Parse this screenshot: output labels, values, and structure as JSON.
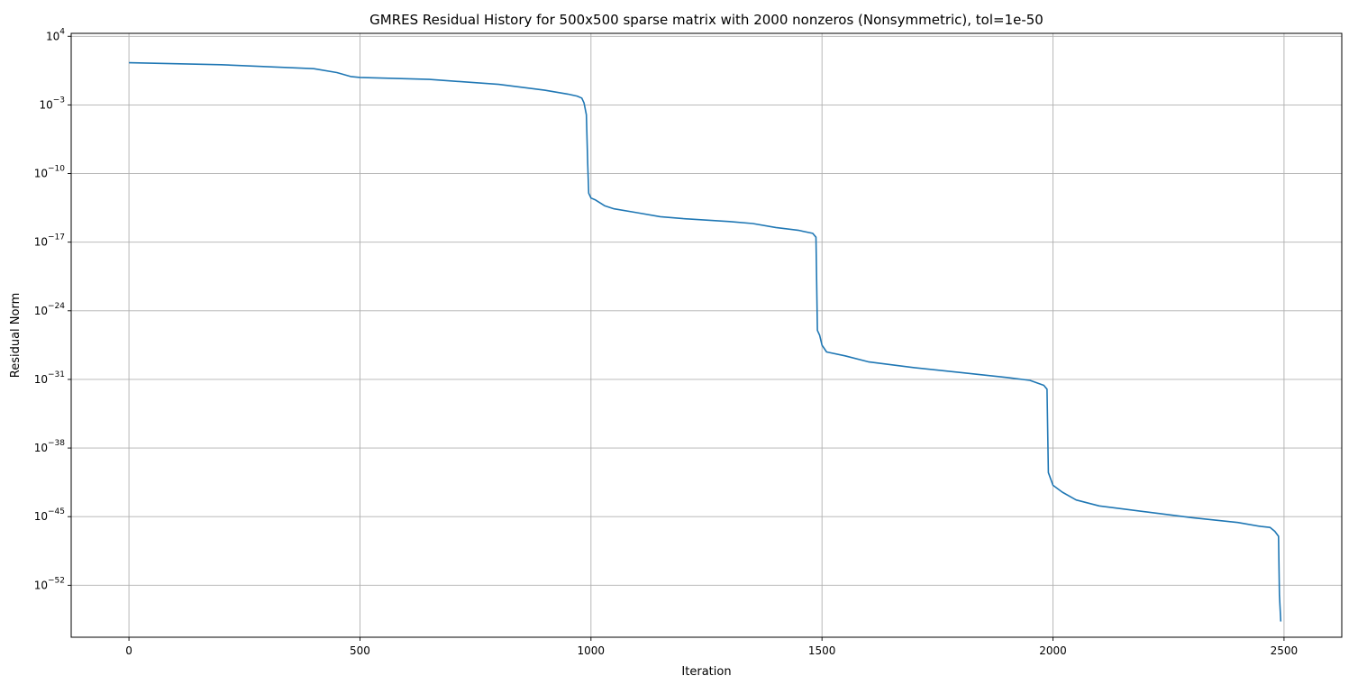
{
  "chart_data": {
    "type": "line",
    "title": "GMRES Residual History for 500x500 sparse matrix with 2000 nonzeros (Nonsymmetric), tol=1e-50",
    "xlabel": "Iteration",
    "ylabel": "Residual Norm",
    "xlim": [
      -125,
      2625
    ],
    "ylim_exp": [
      -57.3,
      4.3
    ],
    "yscale": "log",
    "grid": true,
    "x_ticks": [
      {
        "value": 0,
        "label": "0"
      },
      {
        "value": 500,
        "label": "500"
      },
      {
        "value": 1000,
        "label": "1000"
      },
      {
        "value": 1500,
        "label": "1500"
      },
      {
        "value": 2000,
        "label": "2000"
      },
      {
        "value": 2500,
        "label": "2500"
      }
    ],
    "y_ticks": [
      {
        "exp": 4,
        "base": "10",
        "sup": "4"
      },
      {
        "exp": -3,
        "base": "10",
        "sup": "−3"
      },
      {
        "exp": -10,
        "base": "10",
        "sup": "−10"
      },
      {
        "exp": -17,
        "base": "10",
        "sup": "−17"
      },
      {
        "exp": -24,
        "base": "10",
        "sup": "−24"
      },
      {
        "exp": -31,
        "base": "10",
        "sup": "−31"
      },
      {
        "exp": -38,
        "base": "10",
        "sup": "−38"
      },
      {
        "exp": -45,
        "base": "10",
        "sup": "−45"
      },
      {
        "exp": -52,
        "base": "10",
        "sup": "−52"
      }
    ],
    "series": [
      {
        "color": "#1f77b4",
        "points_log10": [
          [
            0,
            1.3
          ],
          [
            200,
            1.1
          ],
          [
            400,
            0.7
          ],
          [
            450,
            0.3
          ],
          [
            480,
            -0.1
          ],
          [
            500,
            -0.2
          ],
          [
            650,
            -0.4
          ],
          [
            800,
            -0.9
          ],
          [
            900,
            -1.5
          ],
          [
            950,
            -1.9
          ],
          [
            970,
            -2.1
          ],
          [
            980,
            -2.3
          ],
          [
            985,
            -2.8
          ],
          [
            990,
            -4.0
          ],
          [
            993,
            -9.0
          ],
          [
            995,
            -12.0
          ],
          [
            1000,
            -12.5
          ],
          [
            1010,
            -12.7
          ],
          [
            1020,
            -13.0
          ],
          [
            1030,
            -13.3
          ],
          [
            1050,
            -13.6
          ],
          [
            1100,
            -14.0
          ],
          [
            1150,
            -14.4
          ],
          [
            1200,
            -14.6
          ],
          [
            1300,
            -14.9
          ],
          [
            1350,
            -15.1
          ],
          [
            1400,
            -15.5
          ],
          [
            1450,
            -15.8
          ],
          [
            1480,
            -16.1
          ],
          [
            1487,
            -16.5
          ],
          [
            1490,
            -26.0
          ],
          [
            1495,
            -26.5
          ],
          [
            1500,
            -27.5
          ],
          [
            1510,
            -28.2
          ],
          [
            1550,
            -28.6
          ],
          [
            1600,
            -29.2
          ],
          [
            1700,
            -29.8
          ],
          [
            1800,
            -30.3
          ],
          [
            1900,
            -30.8
          ],
          [
            1950,
            -31.1
          ],
          [
            1980,
            -31.6
          ],
          [
            1987,
            -32.0
          ],
          [
            1990,
            -40.5
          ],
          [
            2000,
            -41.8
          ],
          [
            2020,
            -42.5
          ],
          [
            2050,
            -43.3
          ],
          [
            2100,
            -43.9
          ],
          [
            2200,
            -44.5
          ],
          [
            2300,
            -45.1
          ],
          [
            2400,
            -45.6
          ],
          [
            2450,
            -46.0
          ],
          [
            2470,
            -46.1
          ],
          [
            2480,
            -46.5
          ],
          [
            2488,
            -47.0
          ],
          [
            2490,
            -53.0
          ],
          [
            2493,
            -55.7
          ]
        ]
      }
    ]
  }
}
